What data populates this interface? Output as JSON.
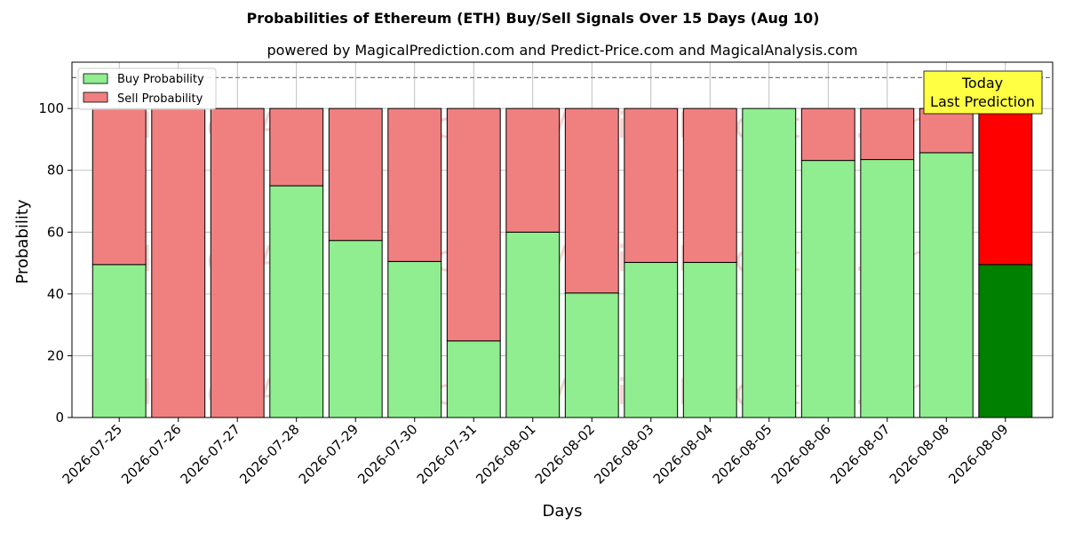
{
  "chart_data": {
    "type": "bar",
    "stacked": true,
    "title": "Probabilities of Ethereum (ETH) Buy/Sell Signals Over 15 Days (Aug 10)",
    "subtitle": "powered by MagicalPrediction.com and Predict-Price.com and MagicalAnalysis.com",
    "xlabel": "Days",
    "ylabel": "Probability",
    "ylim": [
      0,
      115
    ],
    "yticks": [
      0,
      20,
      40,
      60,
      80,
      100
    ],
    "reference_line": 110,
    "grid": true,
    "legend_position": "top-left",
    "categories": [
      "2026-07-25",
      "2026-07-26",
      "2026-07-27",
      "2026-07-28",
      "2026-07-29",
      "2026-07-30",
      "2026-07-31",
      "2026-08-01",
      "2026-08-02",
      "2026-08-03",
      "2026-08-04",
      "2026-08-05",
      "2026-08-06",
      "2026-08-07",
      "2026-08-08",
      "2026-08-09"
    ],
    "series": [
      {
        "name": "Buy Probability",
        "color": "#90ee90",
        "highlight_color": "#008000",
        "values": [
          49.5,
          0,
          0,
          75,
          57.3,
          50.5,
          24.8,
          60,
          40.3,
          50.2,
          50.2,
          100,
          83.2,
          83.5,
          85.7,
          49.5
        ]
      },
      {
        "name": "Sell Probability",
        "color": "#f08080",
        "highlight_color": "#ff0000",
        "values": [
          50.5,
          100,
          100,
          25,
          42.7,
          49.5,
          75.2,
          40,
          59.7,
          49.8,
          49.8,
          0,
          16.8,
          16.5,
          14.3,
          50.5
        ]
      }
    ],
    "highlight_index": 15,
    "annotation": {
      "lines": [
        "Today",
        "Last Prediction"
      ],
      "background": "#ffff44"
    },
    "watermarks": [
      "MagicalAnalysis.com",
      "MagicalPrediction.com"
    ]
  }
}
